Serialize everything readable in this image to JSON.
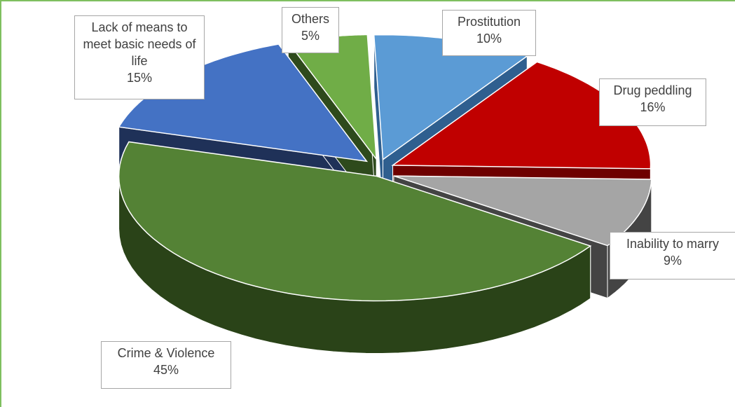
{
  "chart_data": {
    "type": "pie",
    "title": "",
    "slices": [
      {
        "name": "Prostitution",
        "value": 10,
        "label": "10%",
        "color": "#5b9bd5",
        "side": "#2f5f8f"
      },
      {
        "name": "Drug peddling",
        "value": 16,
        "label": "16%",
        "color": "#c00000",
        "side": "#6e0000"
      },
      {
        "name": "Inability to marry",
        "value": 9,
        "label": "9%",
        "color": "#a5a5a5",
        "side": "#444444"
      },
      {
        "name": "Crime & Violence",
        "value": 45,
        "label": "45%",
        "color": "#548235",
        "side": "#2a4318"
      },
      {
        "name": "Lack of means  to meet basic needs of life",
        "value": 15,
        "label": "15%",
        "color": "#4472c4",
        "side": "#1f3158"
      },
      {
        "name": "Others",
        "value": 5,
        "label": "5%",
        "color": "#70ad47",
        "side": "#2e4a1c"
      }
    ],
    "exploded": true,
    "three_d": true,
    "legend": "none",
    "data_labels": "callout boxes with category name and percentage"
  }
}
